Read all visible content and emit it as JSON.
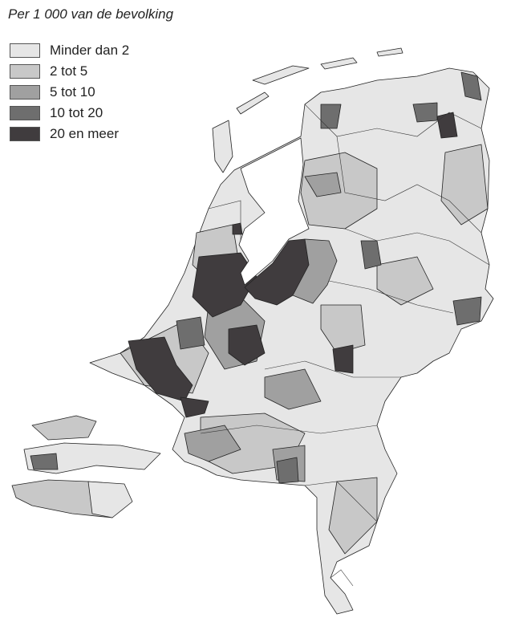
{
  "title": "Per 1 000 van de bevolking",
  "legend": [
    {
      "label": "Minder dan 2",
      "color": "#e6e6e6"
    },
    {
      "label": "2 tot 5",
      "color": "#c8c8c8"
    },
    {
      "label": "5 tot 10",
      "color": "#a0a0a0"
    },
    {
      "label": "10 tot 20",
      "color": "#6e6e6e"
    },
    {
      "label": "20 en meer",
      "color": "#403c3e"
    }
  ]
}
